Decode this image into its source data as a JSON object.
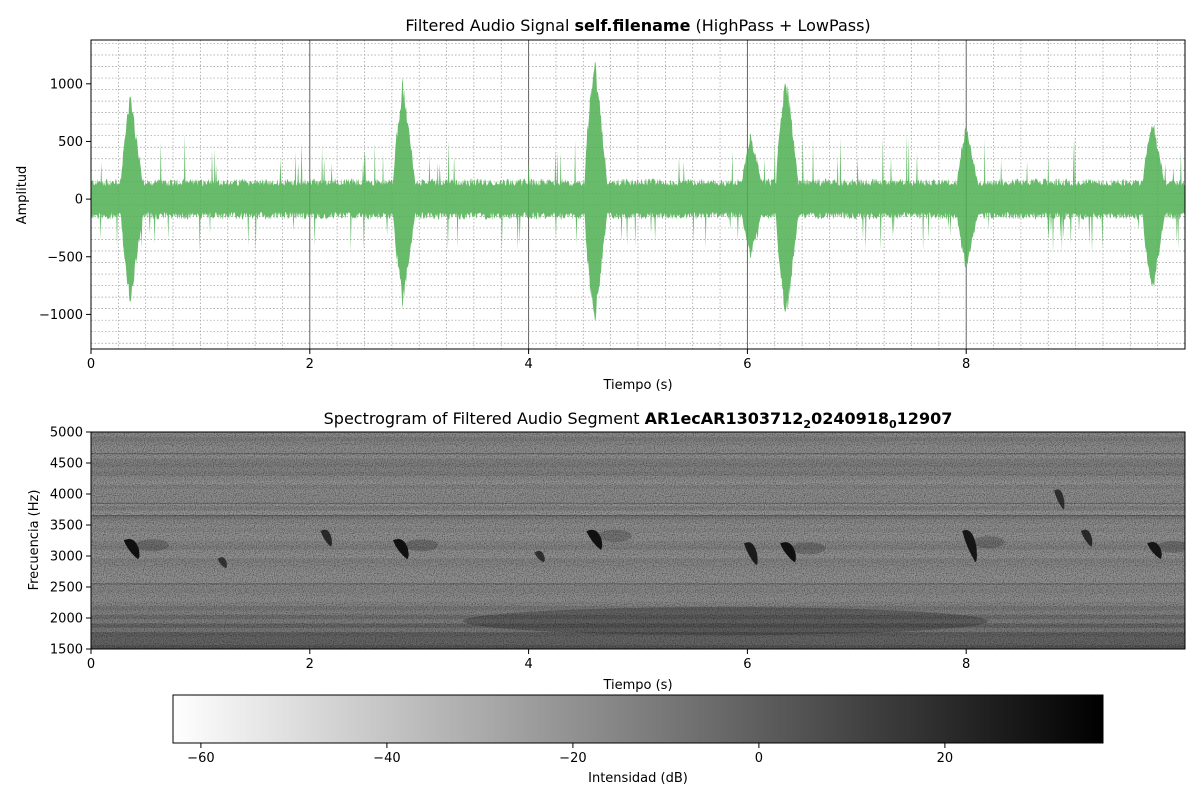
{
  "chart_data": [
    {
      "type": "area",
      "title_parts": [
        "Filtered Audio Signal ",
        "self.filename",
        " (HighPass + LowPass)"
      ],
      "xlabel": "Tiempo (s)",
      "ylabel": "Amplitud",
      "xlim": [
        0,
        10
      ],
      "ylim": [
        -1300,
        1380
      ],
      "xticks": [
        0,
        2,
        4,
        6,
        8
      ],
      "xtick_labels": [
        "0",
        "2",
        "4",
        "6",
        "8"
      ],
      "yticks": [
        1000,
        500,
        0,
        -500,
        -1000
      ],
      "ytick_labels": [
        "1000",
        "500",
        "0",
        "−500",
        "−1000"
      ],
      "grid": "major-solid-minor-dotted",
      "series_color": "#4caf50",
      "noise_amplitude": 150,
      "bursts": [
        {
          "t": 0.36,
          "peak_pos": 950,
          "peak_neg": -950
        },
        {
          "t": 2.85,
          "peak_pos": 1060,
          "peak_neg": -950
        },
        {
          "t": 4.6,
          "peak_pos": 1320,
          "peak_neg": -1170
        },
        {
          "t": 6.03,
          "peak_pos": 600,
          "peak_neg": -540
        },
        {
          "t": 6.35,
          "peak_pos": 1180,
          "peak_neg": -1150
        },
        {
          "t": 8.0,
          "peak_pos": 680,
          "peak_neg": -650
        },
        {
          "t": 9.7,
          "peak_pos": 760,
          "peak_neg": -900
        }
      ]
    },
    {
      "type": "heatmap",
      "title_parts": [
        "Spectrogram of Filtered Audio Segment ",
        "AR1ecAR1303712",
        "2",
        "0240918",
        "0",
        "12907"
      ],
      "xlabel": "Tiempo (s)",
      "ylabel": "Frecuencia (Hz)",
      "xlim": [
        0,
        10
      ],
      "ylim": [
        1500,
        5000
      ],
      "xticks": [
        0,
        2,
        4,
        6,
        8
      ],
      "xtick_labels": [
        "0",
        "2",
        "4",
        "6",
        "8"
      ],
      "yticks": [
        5000,
        4500,
        4000,
        3500,
        3000,
        2500,
        2000,
        1500
      ],
      "ytick_labels": [
        "5000",
        "4500",
        "4000",
        "3500",
        "3000",
        "2500",
        "2000",
        "1500"
      ],
      "colormap": "gray_r",
      "calls": [
        {
          "t": 0.37,
          "f_top": 3300,
          "f_bottom": 2950,
          "strength": 1.0
        },
        {
          "t": 1.2,
          "f_top": 3000,
          "f_bottom": 2800,
          "strength": 0.4
        },
        {
          "t": 2.15,
          "f_top": 3450,
          "f_bottom": 3150,
          "strength": 0.6
        },
        {
          "t": 2.83,
          "f_top": 3300,
          "f_bottom": 2950,
          "strength": 1.0
        },
        {
          "t": 4.1,
          "f_top": 3100,
          "f_bottom": 2900,
          "strength": 0.5
        },
        {
          "t": 4.6,
          "f_top": 3450,
          "f_bottom": 3100,
          "strength": 1.0
        },
        {
          "t": 6.03,
          "f_top": 3250,
          "f_bottom": 2850,
          "strength": 0.8
        },
        {
          "t": 6.37,
          "f_top": 3250,
          "f_bottom": 2900,
          "strength": 1.0
        },
        {
          "t": 8.03,
          "f_top": 3450,
          "f_bottom": 2900,
          "strength": 0.9
        },
        {
          "t": 8.85,
          "f_top": 4100,
          "f_bottom": 3750,
          "strength": 0.5
        },
        {
          "t": 9.1,
          "f_top": 3450,
          "f_bottom": 3150,
          "strength": 0.6
        },
        {
          "t": 9.72,
          "f_top": 3250,
          "f_bottom": 2950,
          "strength": 0.9
        }
      ],
      "colorbar": {
        "label": "Intensidad (dB)",
        "range": [
          -63,
          37
        ],
        "ticks": [
          -60,
          -40,
          -20,
          0,
          20
        ],
        "tick_labels": [
          "−60",
          "−40",
          "−20",
          "0",
          "20"
        ]
      }
    }
  ]
}
